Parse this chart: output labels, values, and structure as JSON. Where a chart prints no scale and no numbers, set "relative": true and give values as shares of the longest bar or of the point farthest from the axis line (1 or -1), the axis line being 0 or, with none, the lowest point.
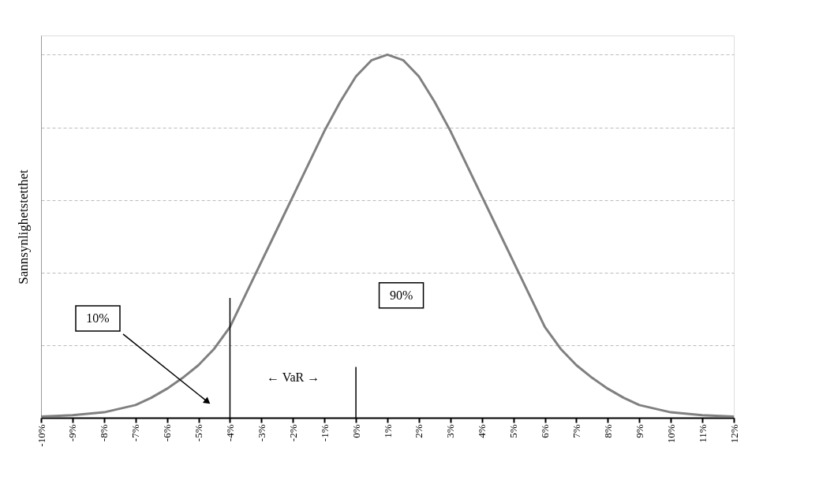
{
  "chart_data": {
    "type": "line",
    "relative": true,
    "ylabel": "Sannsynlighetstetthet",
    "grid": "y",
    "marker": "none",
    "line_style": "solid",
    "xlim": [
      -10,
      12
    ],
    "xticks": [
      {
        "value": -10,
        "label": "-10%"
      },
      {
        "value": -9,
        "label": "-9%"
      },
      {
        "value": -8,
        "label": "-8%"
      },
      {
        "value": -7,
        "label": "-7%"
      },
      {
        "value": -6,
        "label": "-6%"
      },
      {
        "value": -5,
        "label": "-5%"
      },
      {
        "value": -4,
        "label": "-4%"
      },
      {
        "value": -3,
        "label": "-3%"
      },
      {
        "value": -2,
        "label": "-2%"
      },
      {
        "value": -1,
        "label": "-1%"
      },
      {
        "value": 0,
        "label": "0%"
      },
      {
        "value": 1,
        "label": "1%"
      },
      {
        "value": 2,
        "label": "2%"
      },
      {
        "value": 3,
        "label": "3%"
      },
      {
        "value": 4,
        "label": "4%"
      },
      {
        "value": 5,
        "label": "5%"
      },
      {
        "value": 6,
        "label": "6%"
      },
      {
        "value": 7,
        "label": "7%"
      },
      {
        "value": 8,
        "label": "8%"
      },
      {
        "value": 9,
        "label": "9%"
      },
      {
        "value": 10,
        "label": "10%"
      },
      {
        "value": 11,
        "label": "11%"
      },
      {
        "value": 12,
        "label": "12%"
      }
    ],
    "series": [
      {
        "color": "#808080",
        "x": [
          -10,
          -9,
          -8,
          -7,
          -6.5,
          -6,
          -5.5,
          -5,
          -4.5,
          -4,
          -3.5,
          -3,
          -2.5,
          -2,
          -1.5,
          -1,
          -0.5,
          0,
          0.5,
          1,
          1.5,
          2,
          2.5,
          3,
          3.5,
          4,
          4.5,
          5,
          5.5,
          6,
          6.5,
          7,
          7.5,
          8,
          8.5,
          9,
          10,
          11,
          12
        ],
        "values": [
          0.003,
          0.007,
          0.015,
          0.035,
          0.055,
          0.08,
          0.11,
          0.145,
          0.19,
          0.25,
          0.34,
          0.43,
          0.52,
          0.61,
          0.7,
          0.79,
          0.87,
          0.94,
          0.985,
          1,
          0.985,
          0.94,
          0.87,
          0.79,
          0.7,
          0.61,
          0.52,
          0.43,
          0.34,
          0.25,
          0.19,
          0.145,
          0.11,
          0.08,
          0.055,
          0.035,
          0.015,
          0.007,
          0.003
        ]
      },
      {
        "color": "#000000",
        "x": [
          -4,
          -4
        ],
        "values": [
          0,
          0.33
        ]
      },
      {
        "color": "#000000",
        "x": [
          0,
          0
        ],
        "values": [
          0,
          0.14
        ]
      }
    ],
    "annotations": [
      "10%",
      "90%",
      "←  VaR  →"
    ]
  }
}
